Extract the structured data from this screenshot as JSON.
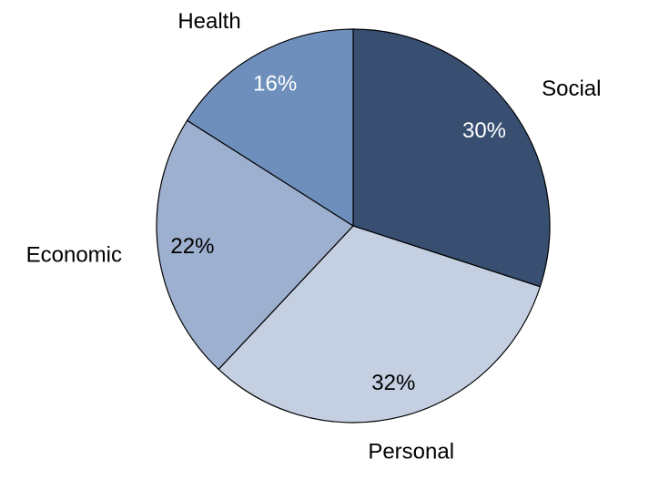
{
  "chart_data": {
    "type": "pie",
    "start_angle_deg": 0,
    "direction": "clockwise",
    "slices": [
      {
        "category": "Social",
        "value": 30,
        "percent_label": "30%",
        "color": "#384f72",
        "label_color": "#ffffff"
      },
      {
        "category": "Personal",
        "value": 32,
        "percent_label": "32%",
        "color": "#c4cfe1",
        "label_color": "#000000"
      },
      {
        "category": "Economic",
        "value": 22,
        "percent_label": "22%",
        "color": "#9eb0cf",
        "label_color": "#000000"
      },
      {
        "category": "Health",
        "value": 16,
        "percent_label": "16%",
        "color": "#6e8fbb",
        "label_color": "#ffffff"
      }
    ],
    "legend": "none"
  }
}
